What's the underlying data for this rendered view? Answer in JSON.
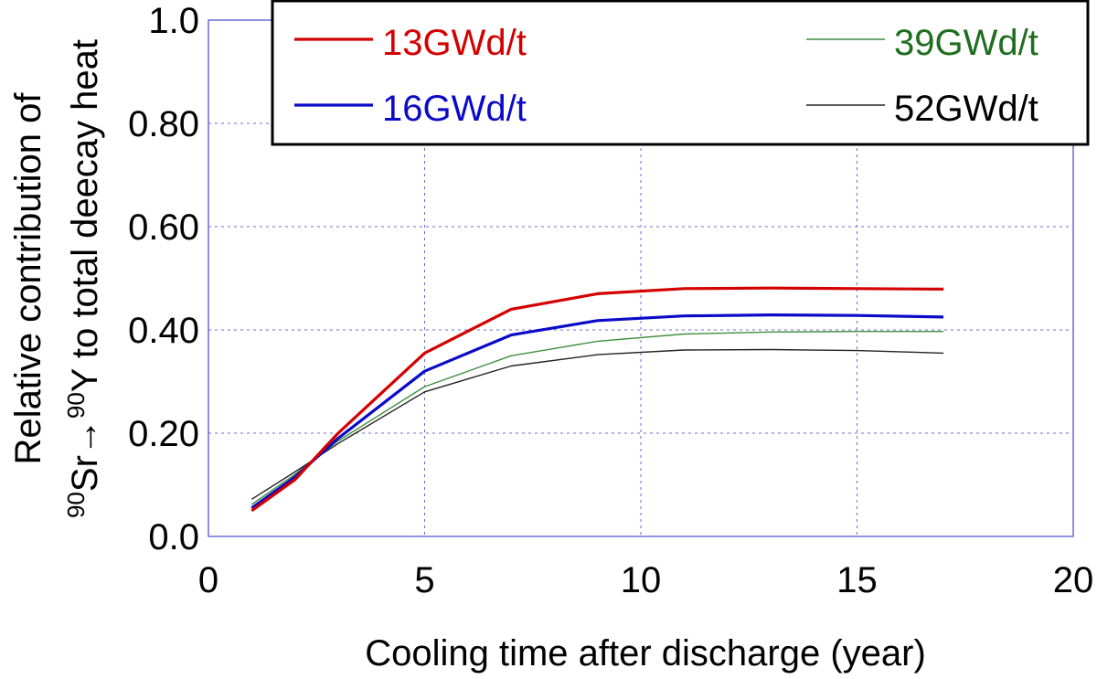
{
  "chart_data": {
    "type": "line",
    "xlabel": "Cooling time after discharge (year)",
    "ylabel_line1": "Relative contribution of",
    "ylabel_line2": {
      "sup1": "90",
      "el1": "Sr",
      "arrow": "→",
      "sup2": "90",
      "el2": "Y to total deecay heat"
    },
    "xlim": [
      0,
      20
    ],
    "ylim": [
      0,
      1.0
    ],
    "x_ticks": [
      0,
      5,
      10,
      15,
      20
    ],
    "x_tick_labels": [
      "0",
      "5",
      "10",
      "15",
      "20"
    ],
    "y_ticks": [
      0,
      0.2,
      0.4,
      0.6,
      0.8,
      1.0
    ],
    "y_tick_labels": [
      "0.0",
      "0.20",
      "0.40",
      "0.60",
      "0.80",
      "1.0"
    ],
    "grid": true,
    "legend_position": "top-right",
    "series": [
      {
        "name": "13GWd/t",
        "color": "#d40000",
        "line_weight": "thick",
        "x": [
          1,
          2,
          3,
          5,
          7,
          9,
          11,
          13,
          15,
          17
        ],
        "y": [
          0.05,
          0.11,
          0.2,
          0.355,
          0.44,
          0.47,
          0.48,
          0.481,
          0.48,
          0.479
        ]
      },
      {
        "name": "16GWd/t",
        "color": "#0a0ac8",
        "line_weight": "thick",
        "x": [
          1,
          2,
          3,
          5,
          7,
          9,
          11,
          13,
          15,
          17
        ],
        "y": [
          0.055,
          0.115,
          0.19,
          0.32,
          0.39,
          0.418,
          0.427,
          0.429,
          0.428,
          0.425
        ]
      },
      {
        "name": "39GWd/t",
        "color": "#3f8f3f",
        "line_weight": "thin",
        "x": [
          1,
          2,
          3,
          5,
          7,
          9,
          11,
          13,
          15,
          17
        ],
        "y": [
          0.062,
          0.12,
          0.185,
          0.29,
          0.35,
          0.378,
          0.392,
          0.396,
          0.397,
          0.397
        ]
      },
      {
        "name": "52GWd/t",
        "color": "#222222",
        "line_weight": "thin",
        "x": [
          1,
          2,
          3,
          5,
          7,
          9,
          11,
          13,
          15,
          17
        ],
        "y": [
          0.072,
          0.125,
          0.18,
          0.28,
          0.33,
          0.352,
          0.361,
          0.362,
          0.36,
          0.355
        ]
      }
    ]
  }
}
